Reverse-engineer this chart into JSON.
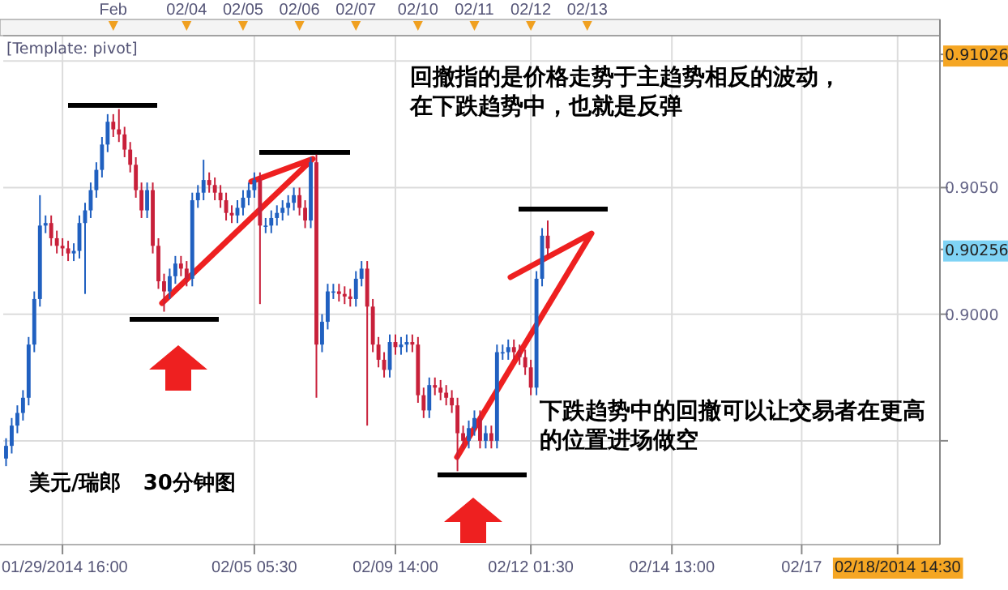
{
  "chart_data": {
    "type": "candlestick",
    "categories": [
      null,
      null,
      null,
      null,
      null,
      null,
      null,
      null,
      null,
      null,
      "01/29/2014 16:00",
      null,
      null,
      null,
      null,
      null,
      null,
      null,
      null,
      null,
      null,
      null,
      null,
      null,
      null,
      null,
      null,
      null,
      null,
      null,
      null,
      null,
      null,
      null,
      null,
      null,
      null,
      null,
      null,
      null,
      null,
      null,
      null,
      null,
      "02/05 05:30",
      null,
      null,
      null,
      null,
      null,
      null,
      null,
      null,
      null,
      null,
      null,
      null,
      null,
      null,
      null,
      null,
      null,
      null,
      null,
      null,
      null,
      null,
      null,
      null,
      "02/09 14:00",
      null,
      null,
      null,
      null,
      null,
      null,
      null,
      null,
      null,
      null,
      null,
      null,
      null,
      null,
      null,
      null,
      null,
      null,
      null,
      null,
      null,
      null,
      null,
      "02/12 01:30",
      null,
      null,
      null,
      null,
      null,
      null,
      null,
      null,
      null,
      null,
      null,
      null,
      null,
      null,
      null,
      null,
      null,
      null,
      null,
      null,
      null,
      null,
      null,
      null,
      "02/14 13:00",
      null,
      null,
      null,
      null,
      null,
      null,
      null,
      null,
      null,
      null,
      null,
      null,
      null,
      null,
      null,
      null,
      null,
      null,
      null,
      null,
      null,
      null,
      "02/17",
      null,
      null,
      null,
      null,
      null,
      null,
      null,
      null,
      null,
      null,
      null,
      null,
      null,
      null,
      null,
      null,
      "02/18/2014 14:30",
      null,
      null,
      null,
      null,
      null,
      null,
      null
    ],
    "ohlc": [
      [
        0.8943,
        0.8951,
        0.894,
        0.8948
      ],
      [
        0.8948,
        0.8959,
        0.8945,
        0.8956
      ],
      [
        0.8956,
        0.8964,
        0.8953,
        0.8961
      ],
      [
        0.8961,
        0.897,
        0.8958,
        0.8967
      ],
      [
        0.8967,
        0.8991,
        0.8964,
        0.8988
      ],
      [
        0.8988,
        0.9009,
        0.8985,
        0.9006
      ],
      [
        0.9006,
        0.9047,
        0.9003,
        0.9035
      ],
      [
        0.9035,
        0.9039,
        0.9032,
        0.9036
      ],
      [
        0.9036,
        0.9039,
        0.9027,
        0.903
      ],
      [
        0.903,
        0.9033,
        0.9024,
        0.9027
      ],
      [
        0.9027,
        0.903,
        0.9023,
        0.9026
      ],
      [
        0.9026,
        0.9029,
        0.9021,
        0.9024
      ],
      [
        0.9024,
        0.9028,
        0.9021,
        0.9025
      ],
      [
        0.9025,
        0.9039,
        0.9022,
        0.9036
      ],
      [
        0.9036,
        0.9044,
        0.9008,
        0.9041
      ],
      [
        0.9041,
        0.9052,
        0.9038,
        0.9049
      ],
      [
        0.9049,
        0.906,
        0.9046,
        0.9057
      ],
      [
        0.9057,
        0.907,
        0.9054,
        0.9067
      ],
      [
        0.9067,
        0.9079,
        0.9064,
        0.9076
      ],
      [
        0.9076,
        0.9079,
        0.907,
        0.9073
      ],
      [
        0.9073,
        0.9081,
        0.9068,
        0.9071
      ],
      [
        0.9071,
        0.9074,
        0.9062,
        0.9065
      ],
      [
        0.9065,
        0.9068,
        0.9056,
        0.9059
      ],
      [
        0.9059,
        0.9062,
        0.9046,
        0.9049
      ],
      [
        0.9049,
        0.9052,
        0.9038,
        0.9041
      ],
      [
        0.9041,
        0.9052,
        0.9038,
        0.9049
      ],
      [
        0.9049,
        0.9052,
        0.9024,
        0.9027
      ],
      [
        0.9027,
        0.903,
        0.901,
        0.9013
      ],
      [
        0.9013,
        0.9016,
        0.9001,
        0.9009
      ],
      [
        0.9009,
        0.9018,
        0.9006,
        0.9015
      ],
      [
        0.9015,
        0.9023,
        0.9012,
        0.902
      ],
      [
        0.902,
        0.9023,
        0.9015,
        0.9018
      ],
      [
        0.9018,
        0.9021,
        0.9011,
        0.9014
      ],
      [
        0.9014,
        0.9048,
        0.9011,
        0.9045
      ],
      [
        0.9045,
        0.9051,
        0.9042,
        0.9048
      ],
      [
        0.9048,
        0.9061,
        0.9045,
        0.9053
      ],
      [
        0.9053,
        0.9056,
        0.9048,
        0.9051
      ],
      [
        0.9051,
        0.9054,
        0.9045,
        0.9048
      ],
      [
        0.9048,
        0.9051,
        0.9042,
        0.9045
      ],
      [
        0.9045,
        0.9048,
        0.9037,
        0.904
      ],
      [
        0.904,
        0.9043,
        0.9036,
        0.9039
      ],
      [
        0.9039,
        0.9045,
        0.9036,
        0.9042
      ],
      [
        0.9042,
        0.9049,
        0.9039,
        0.9046
      ],
      [
        0.9046,
        0.9052,
        0.9043,
        0.9049
      ],
      [
        0.9049,
        0.9056,
        0.9046,
        0.9053
      ],
      [
        0.9053,
        0.9056,
        0.9004,
        0.9035
      ],
      [
        0.9035,
        0.9038,
        0.9032,
        0.9035
      ],
      [
        0.9035,
        0.9041,
        0.9032,
        0.9038
      ],
      [
        0.9038,
        0.9043,
        0.9035,
        0.904
      ],
      [
        0.904,
        0.9045,
        0.9037,
        0.9042
      ],
      [
        0.9042,
        0.9047,
        0.9039,
        0.9044
      ],
      [
        0.9044,
        0.905,
        0.9041,
        0.9047
      ],
      [
        0.9047,
        0.905,
        0.9039,
        0.9042
      ],
      [
        0.9042,
        0.9045,
        0.9034,
        0.9037
      ],
      [
        0.9037,
        0.9062,
        0.9034,
        0.906
      ],
      [
        0.906,
        0.9063,
        0.8967,
        0.8988
      ],
      [
        0.8988,
        0.9,
        0.8985,
        0.8997
      ],
      [
        0.8997,
        0.9012,
        0.8994,
        0.9009
      ],
      [
        0.9009,
        0.9012,
        0.9006,
        0.9009
      ],
      [
        0.9009,
        0.9012,
        0.9005,
        0.9008
      ],
      [
        0.9008,
        0.9011,
        0.9004,
        0.9007
      ],
      [
        0.9007,
        0.901,
        0.9003,
        0.9006
      ],
      [
        0.9006,
        0.9017,
        0.9003,
        0.9014
      ],
      [
        0.9014,
        0.9021,
        0.9011,
        0.9018
      ],
      [
        0.9018,
        0.9021,
        0.8956,
        0.9003
      ],
      [
        0.9003,
        0.9006,
        0.8985,
        0.8988
      ],
      [
        0.8988,
        0.8991,
        0.8979,
        0.8982
      ],
      [
        0.8982,
        0.8985,
        0.8975,
        0.8978
      ],
      [
        0.8978,
        0.8992,
        0.8975,
        0.8989
      ],
      [
        0.8989,
        0.8992,
        0.8984,
        0.8987
      ],
      [
        0.8987,
        0.8991,
        0.8984,
        0.8988
      ],
      [
        0.8988,
        0.8992,
        0.8985,
        0.8989
      ],
      [
        0.8989,
        0.8992,
        0.8985,
        0.8988
      ],
      [
        0.8988,
        0.8991,
        0.8965,
        0.8968
      ],
      [
        0.8968,
        0.8971,
        0.8959,
        0.8962
      ],
      [
        0.8962,
        0.8975,
        0.8959,
        0.8972
      ],
      [
        0.8972,
        0.8975,
        0.8968,
        0.8971
      ],
      [
        0.8971,
        0.8974,
        0.8966,
        0.8969
      ],
      [
        0.8969,
        0.8972,
        0.8964,
        0.8967
      ],
      [
        0.8967,
        0.897,
        0.8961,
        0.8964
      ],
      [
        0.8964,
        0.8967,
        0.8938,
        0.8953
      ],
      [
        0.8953,
        0.8956,
        0.8947,
        0.895
      ],
      [
        0.895,
        0.8958,
        0.8947,
        0.8955
      ],
      [
        0.8955,
        0.8962,
        0.8952,
        0.8959
      ],
      [
        0.8959,
        0.8962,
        0.8947,
        0.895
      ],
      [
        0.895,
        0.8956,
        0.8947,
        0.8953
      ],
      [
        0.8953,
        0.8956,
        0.8947,
        0.895
      ],
      [
        0.895,
        0.8988,
        0.8947,
        0.8985
      ],
      [
        0.8985,
        0.8988,
        0.8982,
        0.8985
      ],
      [
        0.8985,
        0.899,
        0.8982,
        0.8987
      ],
      [
        0.8987,
        0.899,
        0.8982,
        0.8985
      ],
      [
        0.8985,
        0.8988,
        0.898,
        0.8983
      ],
      [
        0.8983,
        0.8986,
        0.8976,
        0.8979
      ],
      [
        0.8979,
        0.8982,
        0.8968,
        0.8971
      ],
      [
        0.8971,
        0.9017,
        0.8968,
        0.9014
      ],
      [
        0.9014,
        0.9034,
        0.9011,
        0.9031
      ],
      [
        0.9031,
        0.9037,
        0.9023,
        0.9026
      ],
      null,
      null,
      null,
      null,
      null,
      null,
      null,
      null,
      null,
      null,
      null,
      null,
      null,
      null,
      null,
      null,
      null,
      null,
      null,
      null,
      null,
      null,
      null,
      null,
      null,
      null,
      null,
      null,
      null,
      null,
      null,
      null,
      null,
      null,
      null,
      null,
      null,
      null,
      null,
      null,
      null,
      null,
      null,
      null,
      null,
      null,
      null,
      null,
      null,
      null,
      null,
      null,
      null,
      null,
      null,
      null,
      null,
      null,
      null,
      null,
      null,
      null,
      null,
      null,
      null,
      null,
      null,
      null,
      null
    ],
    "ylim": [
      0.8909,
      0.911
    ],
    "yticks": [
      {
        "value": 0.895,
        "label": null
      },
      {
        "value": 0.9,
        "label": "0.9000"
      },
      {
        "value": 0.905,
        "label": "0.9050"
      },
      {
        "value": 0.91,
        "label": null
      },
      {
        "value": 0.91026,
        "label": "0.91026"
      },
      {
        "value": 0.90256,
        "label": "0.90256"
      }
    ],
    "grid": true,
    "annotations": [
      "[Template: pivot]",
      "回撤指的是价格走势于主趋势相反的波动，在下跌趋势中，也就是反弹",
      "下跌趋势中的回撤可以让交易者在更高的位置进场做空",
      "美元/瑞郎   30分钟图",
      "Feb",
      "02/04",
      "02/05",
      "02/06",
      "02/07",
      "02/10",
      "02/11",
      "02/12",
      "02/13"
    ]
  }
}
